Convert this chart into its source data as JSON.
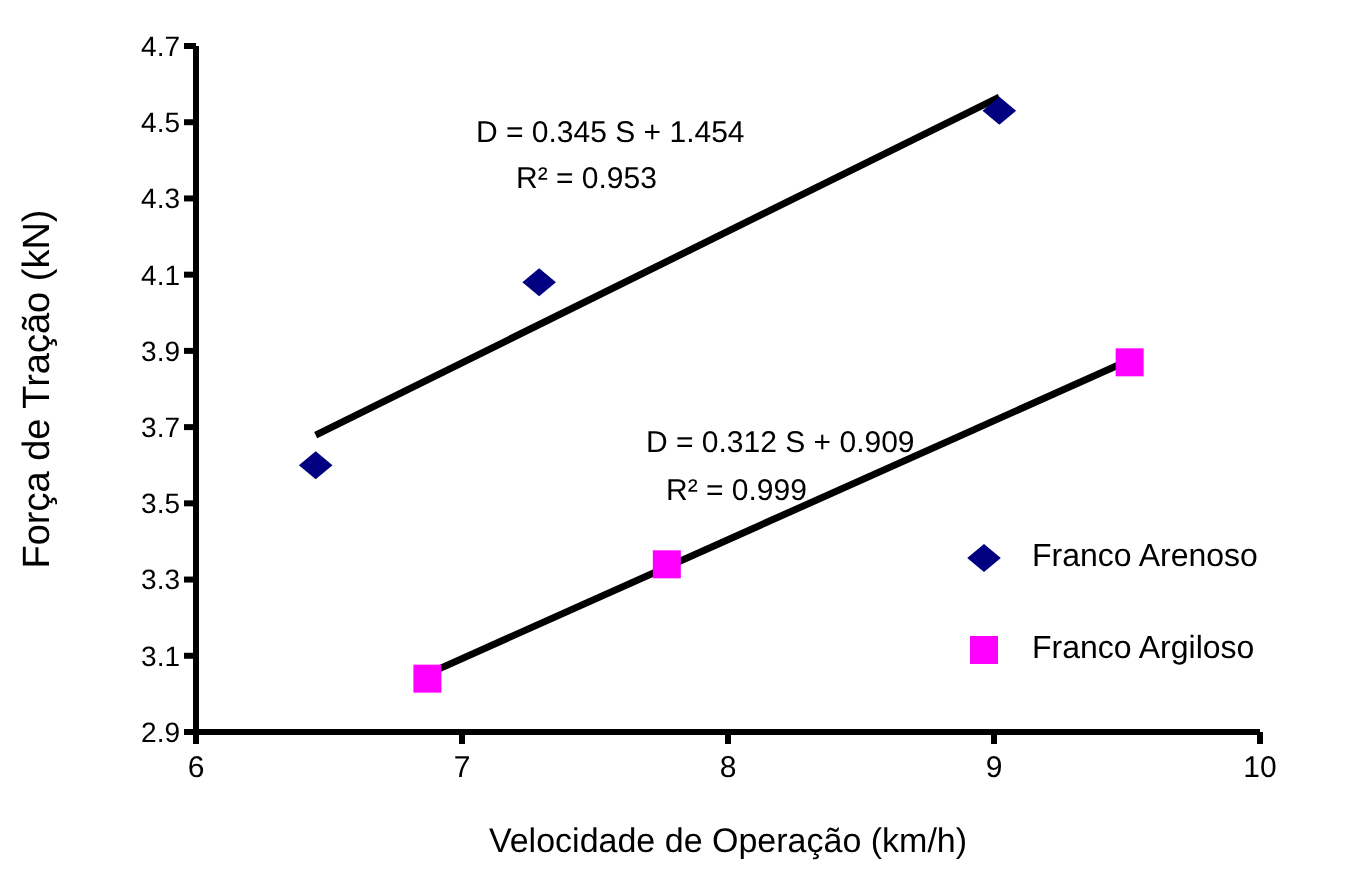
{
  "chart_data": {
    "type": "scatter",
    "xlabel": "Velocidade de Operação (km/h)",
    "ylabel": "Força de Tração (kN)",
    "xlim": [
      6,
      10
    ],
    "xticks": [
      6,
      7,
      8,
      9,
      10
    ],
    "ylim": [
      2.9,
      4.7
    ],
    "yticks": [
      2.9,
      3.1,
      3.3,
      3.5,
      3.7,
      3.9,
      4.1,
      4.3,
      4.5,
      4.7
    ],
    "grid": false,
    "legend": "right",
    "series": [
      {
        "name": "Franco Arenoso",
        "marker": "diamond",
        "color": "#000080",
        "x": [
          6.45,
          7.29,
          9.02
        ],
        "values": [
          3.6,
          4.08,
          4.53
        ]
      },
      {
        "name": "Franco Argiloso",
        "marker": "square",
        "color": "#ff00ff",
        "x": [
          6.87,
          7.77,
          9.51
        ],
        "values": [
          3.04,
          3.34,
          3.87
        ]
      },
      {
        "type": "line",
        "marker": "none",
        "color": "#000000",
        "x": [
          6.45,
          9.02
        ],
        "values": [
          3.679,
          4.566
        ]
      },
      {
        "type": "line",
        "marker": "none",
        "color": "#000000",
        "x": [
          6.87,
          9.51
        ],
        "values": [
          3.052,
          3.876
        ]
      }
    ],
    "annotations": [
      "D = 0.345 S + 1.454",
      "R² = 0.953",
      "D = 0.312 S + 0.909",
      "R² = 0.999"
    ]
  }
}
